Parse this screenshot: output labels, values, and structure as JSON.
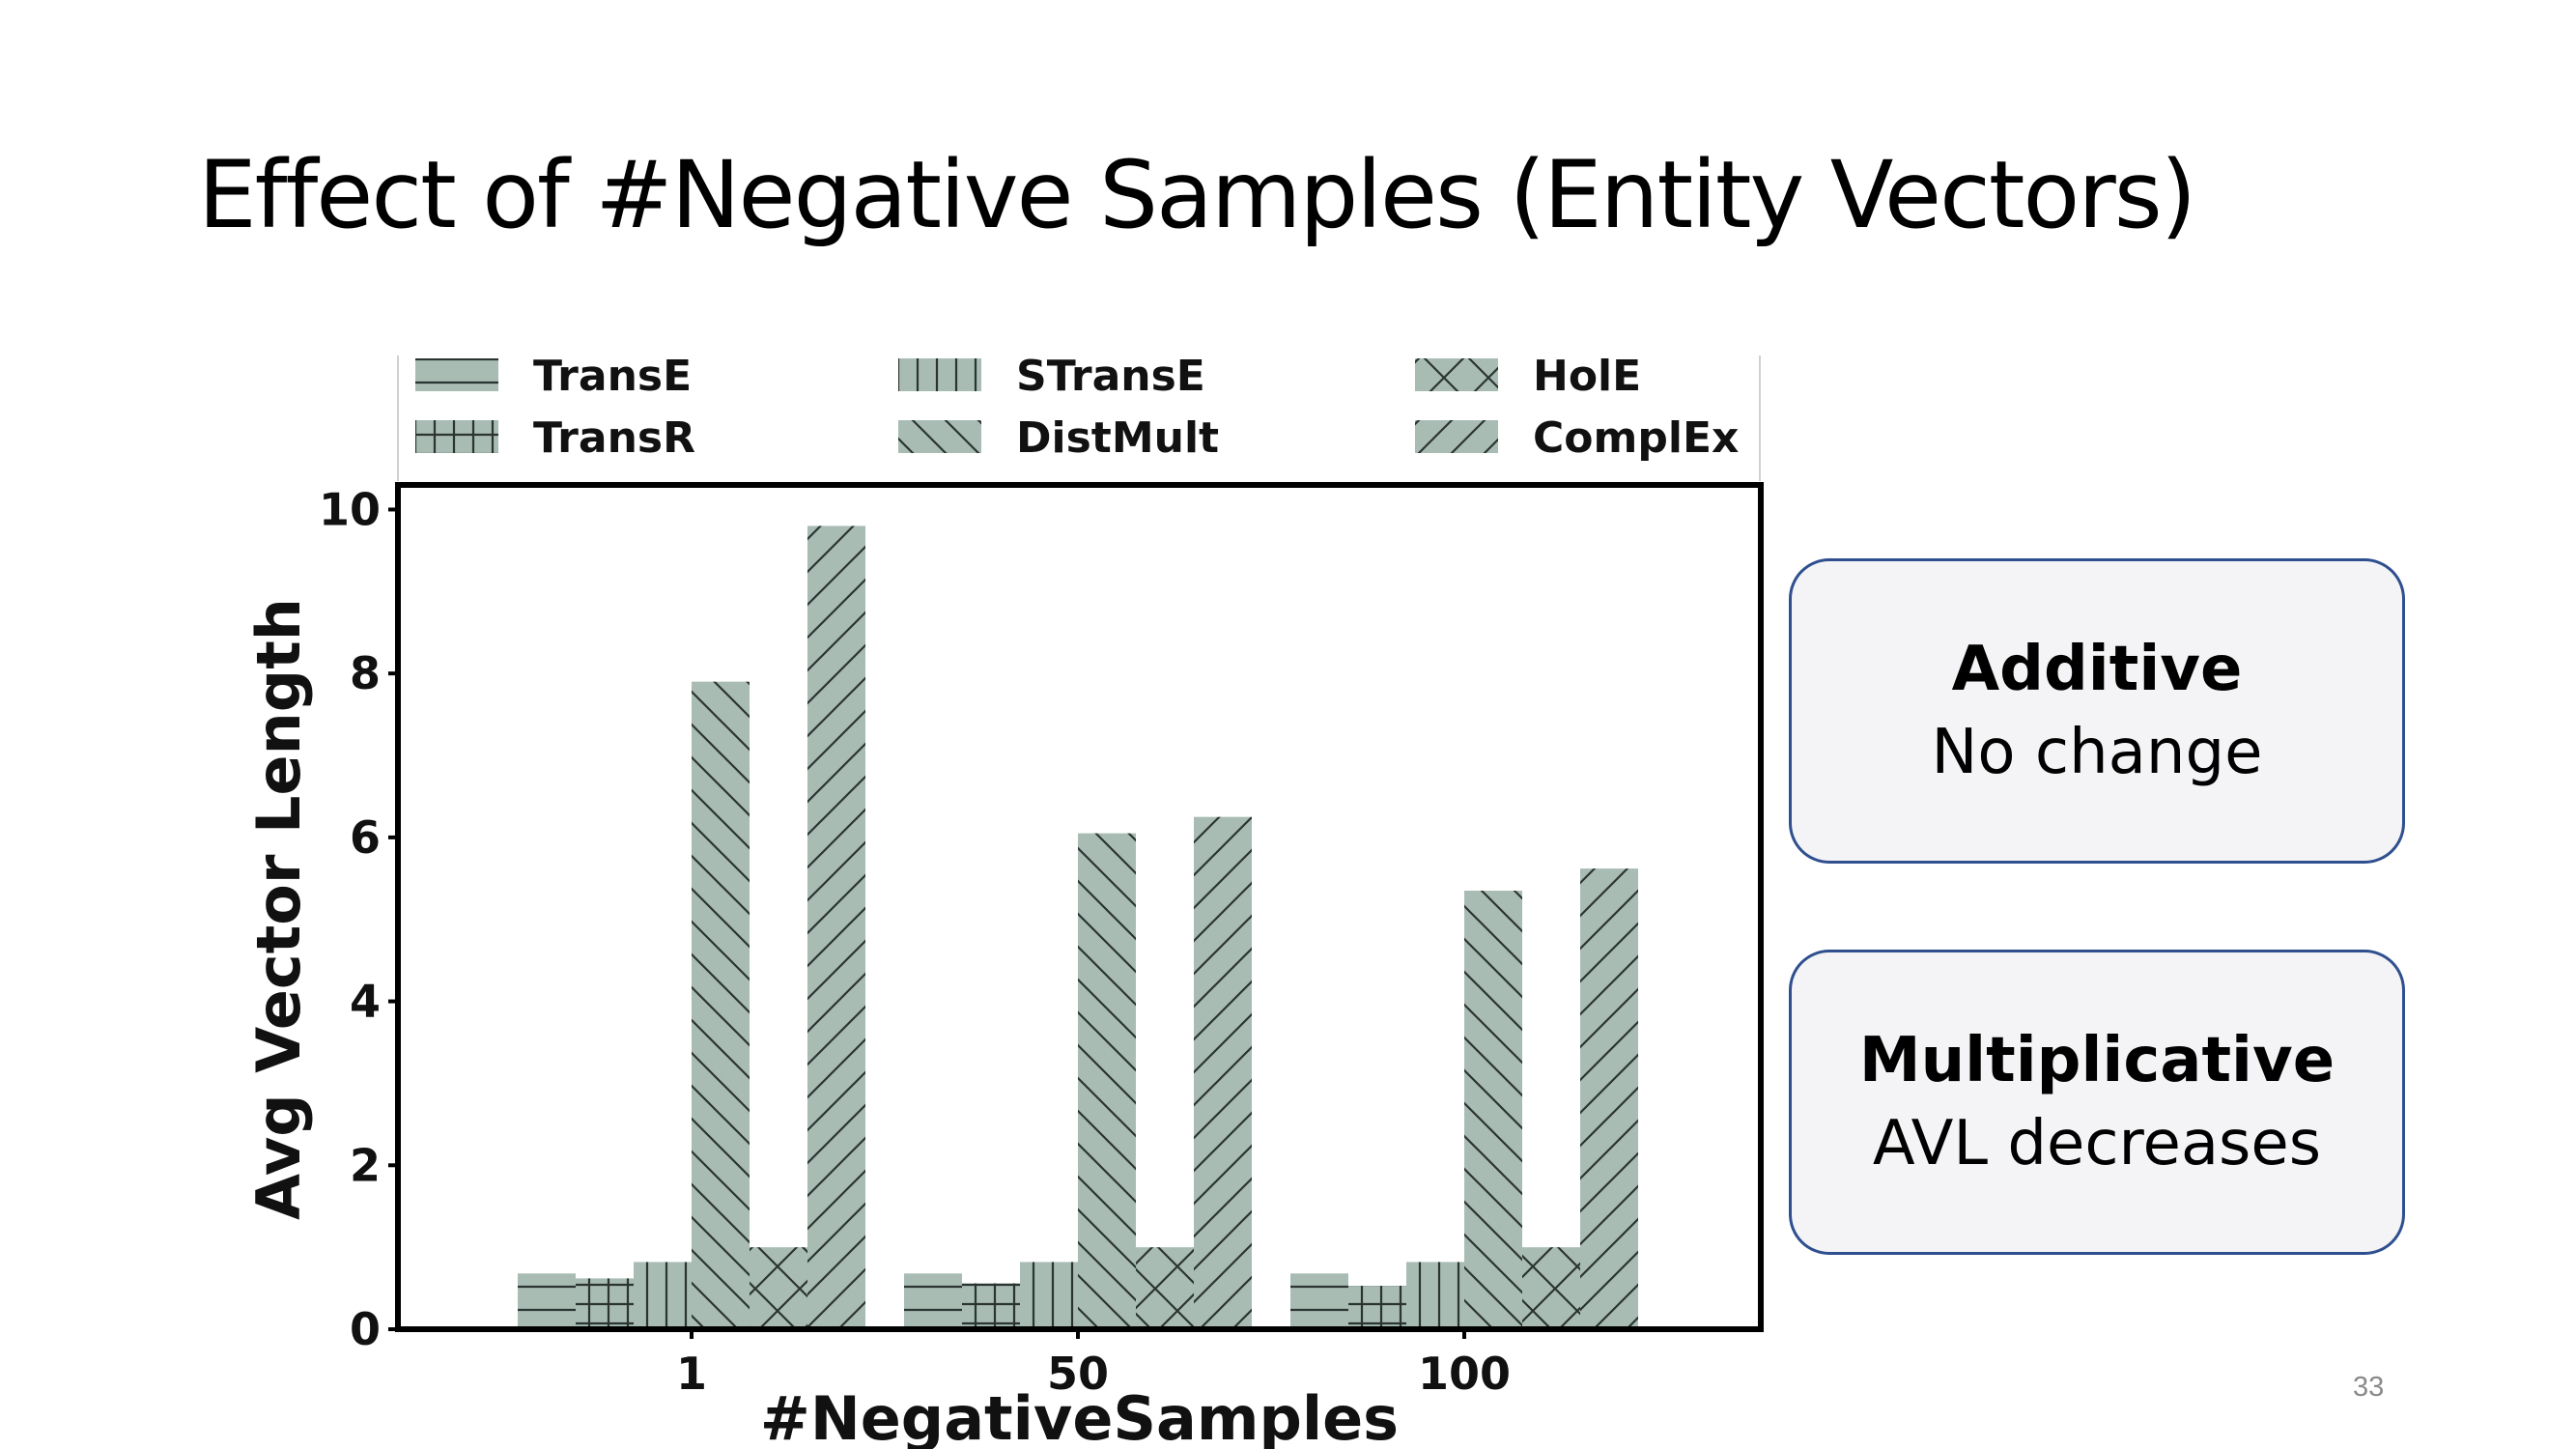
{
  "slide": {
    "title": "Effect of #Negative Samples (Entity Vectors)",
    "number": "33"
  },
  "boxes": [
    {
      "heading": "Additive",
      "subtext": "No change"
    },
    {
      "heading": "Multiplicative",
      "subtext": "AVL decreases"
    }
  ],
  "colors": {
    "bar_fill": "#a8bcb4",
    "hatch": "#2b3430",
    "box_border": "#2f4f8f",
    "box_fill": "#f4f4f6"
  },
  "chart_data": {
    "type": "bar",
    "xlabel": "#NegativeSamples",
    "ylabel": "Avg Vector Length",
    "categories": [
      "1",
      "50",
      "100"
    ],
    "ylim": [
      0,
      10.3
    ],
    "yticks": [
      0,
      2,
      4,
      6,
      8,
      10
    ],
    "legend_position": "top (above plot, 3 columns)",
    "grid": false,
    "series": [
      {
        "name": "TransE",
        "hatch": "horizontal",
        "values": [
          0.68,
          0.68,
          0.68
        ]
      },
      {
        "name": "TransR",
        "hatch": "grid",
        "values": [
          0.62,
          0.56,
          0.53
        ]
      },
      {
        "name": "STransE",
        "hatch": "vertical",
        "values": [
          0.82,
          0.82,
          0.82
        ]
      },
      {
        "name": "DistMult",
        "hatch": "backslash",
        "values": [
          7.9,
          6.05,
          5.35
        ]
      },
      {
        "name": "HolE",
        "hatch": "cross",
        "values": [
          1.0,
          1.0,
          1.0
        ]
      },
      {
        "name": "ComplEx",
        "hatch": "slash",
        "values": [
          9.8,
          6.25,
          5.62
        ]
      }
    ]
  }
}
